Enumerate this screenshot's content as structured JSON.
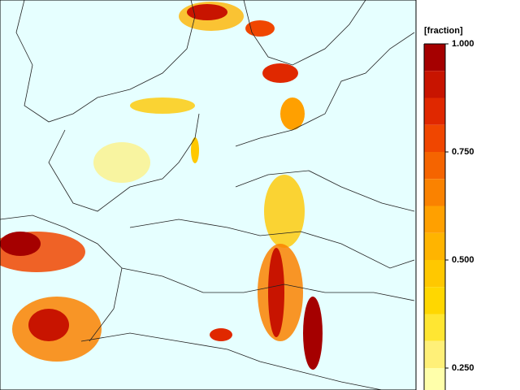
{
  "colorbar": {
    "unit": "[fraction]",
    "range": [
      0.1875,
      1
    ],
    "ticks": [
      {
        "value": 1,
        "label": "1.000"
      },
      {
        "value": 0.75,
        "label": "0.750"
      },
      {
        "value": 0.5,
        "label": "0.500"
      },
      {
        "value": 0.25,
        "label": "0.250"
      }
    ],
    "bands": [
      {
        "from": 0.9375,
        "to": 1,
        "color": "#a50000"
      },
      {
        "from": 0.875,
        "to": 0.9375,
        "color": "#c81400"
      },
      {
        "from": 0.8125,
        "to": 0.875,
        "color": "#e02800"
      },
      {
        "from": 0.75,
        "to": 0.8125,
        "color": "#f04600"
      },
      {
        "from": 0.6875,
        "to": 0.75,
        "color": "#f56400"
      },
      {
        "from": 0.625,
        "to": 0.6875,
        "color": "#fa8200"
      },
      {
        "from": 0.5625,
        "to": 0.625,
        "color": "#ffa000"
      },
      {
        "from": 0.5,
        "to": 0.5625,
        "color": "#ffb400"
      },
      {
        "from": 0.4375,
        "to": 0.5,
        "color": "#ffc800"
      },
      {
        "from": 0.375,
        "to": 0.4375,
        "color": "#ffd700"
      },
      {
        "from": 0.3125,
        "to": 0.375,
        "color": "#ffe632"
      },
      {
        "from": 0.25,
        "to": 0.3125,
        "color": "#fff078"
      },
      {
        "from": 0.1875,
        "to": 0.25,
        "color": "#ffffaa"
      }
    ]
  }
}
